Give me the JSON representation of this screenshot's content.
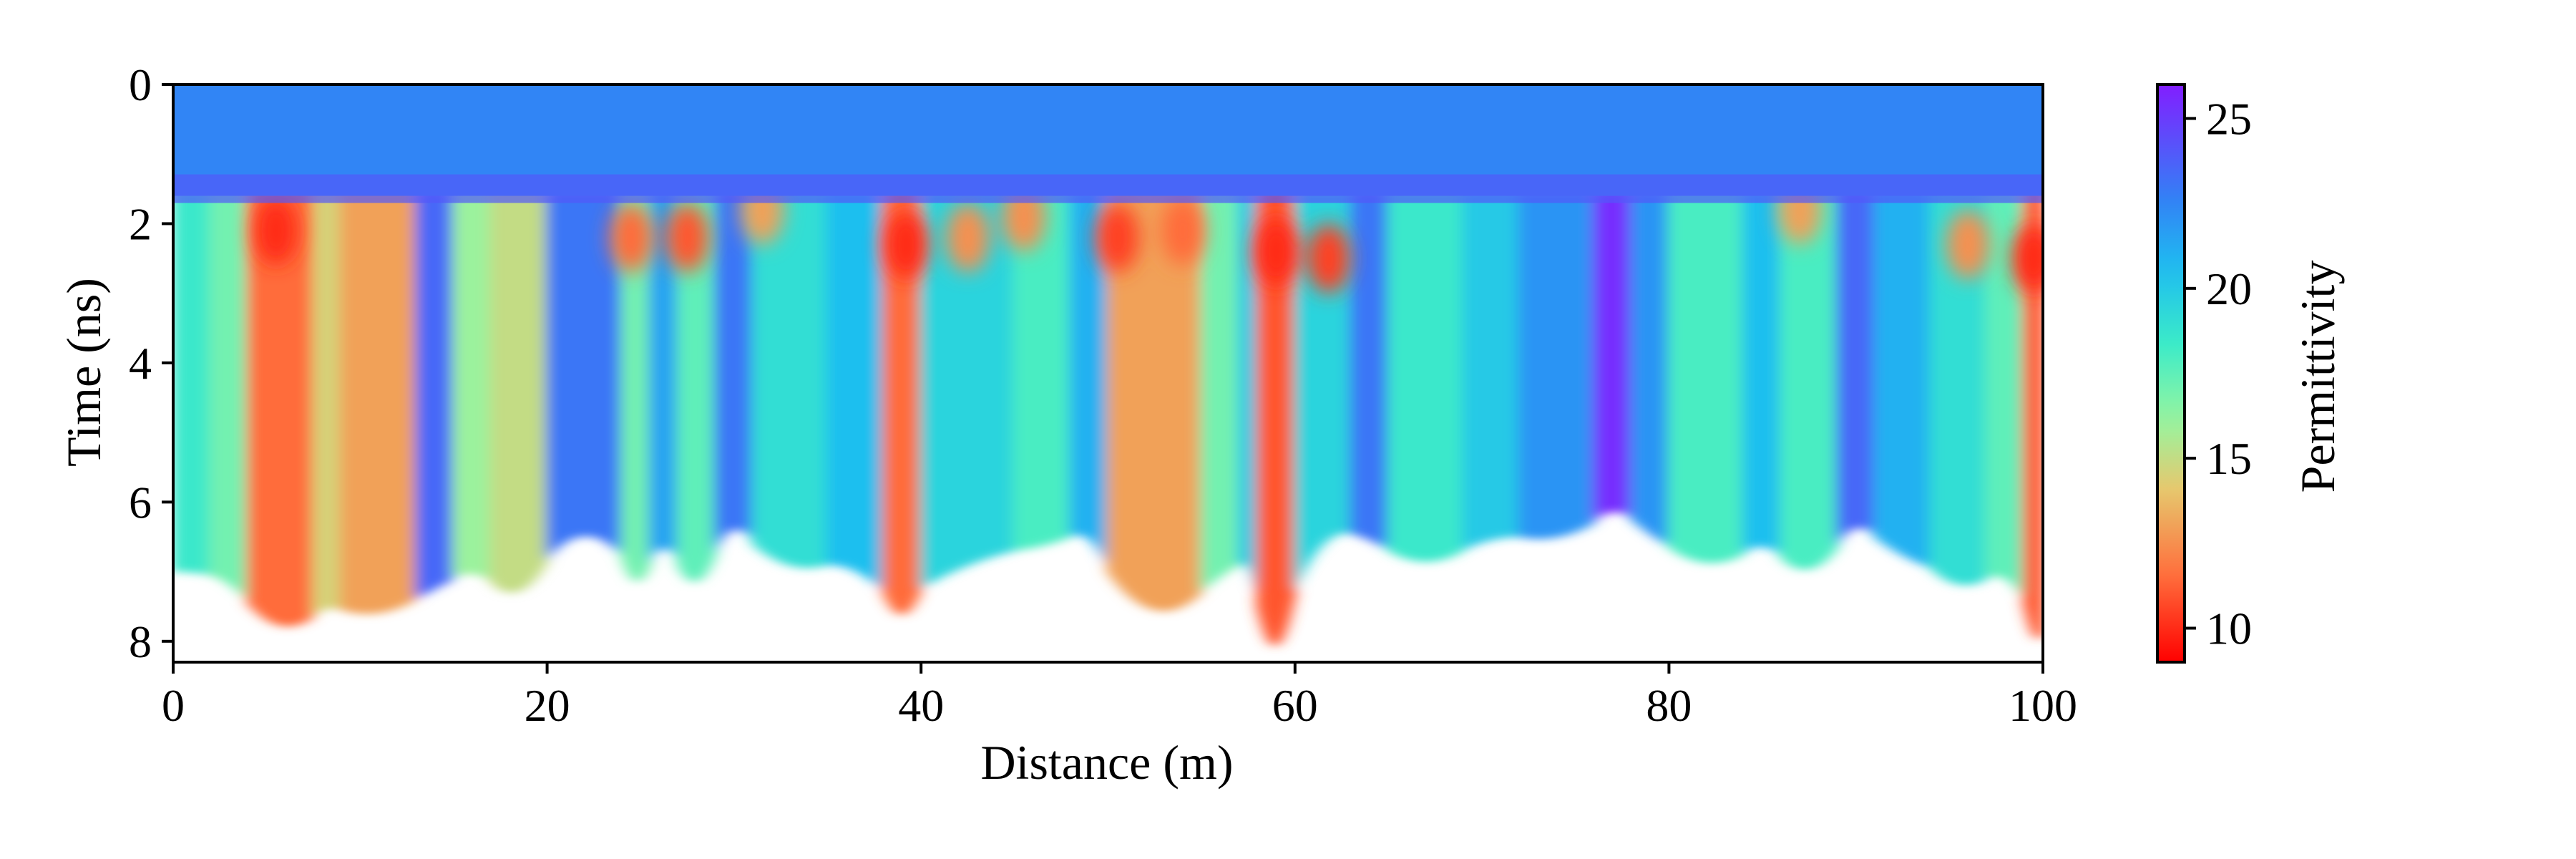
{
  "chart_data": {
    "type": "heatmap",
    "title": "",
    "xlabel": "Distance (m)",
    "ylabel": "Time (ns)",
    "xlim": [
      0,
      100
    ],
    "ylim": [
      0,
      8.3
    ],
    "y_inverted": true,
    "x_ticks": [
      0,
      20,
      40,
      60,
      80,
      100
    ],
    "x_tick_labels": [
      "0",
      "20",
      "40",
      "60",
      "80",
      "100"
    ],
    "y_ticks": [
      0,
      2,
      4,
      6,
      8
    ],
    "y_tick_labels": [
      "0",
      "2",
      "4",
      "6",
      "8"
    ],
    "colorbar": {
      "label": "Permittivity",
      "colormap": "rainbow-reversed",
      "range": [
        9,
        26
      ],
      "ticks": [
        10,
        15,
        20,
        25
      ],
      "tick_labels": [
        "10",
        "15",
        "20",
        "25"
      ]
    },
    "surface_layer": {
      "permittivity": 22.5,
      "bottom_time_ns": 1.6
    },
    "columns": [
      {
        "x": [
          0,
          2
        ],
        "permittivity": 18.5,
        "bottom_ns": 7.0
      },
      {
        "x": [
          2,
          4
        ],
        "permittivity": 17.0,
        "bottom_ns": 7.1
      },
      {
        "x": [
          4,
          7.5
        ],
        "permittivity": 11.5,
        "bottom_ns": 7.8
      },
      {
        "x": [
          7.5,
          9
        ],
        "permittivity": 14.5,
        "bottom_ns": 7.5
      },
      {
        "x": [
          9,
          13
        ],
        "permittivity": 13.0,
        "bottom_ns": 7.6
      },
      {
        "x": [
          13,
          15
        ],
        "permittivity": 23.5,
        "bottom_ns": 7.2
      },
      {
        "x": [
          15,
          17
        ],
        "permittivity": 16.0,
        "bottom_ns": 7.0
      },
      {
        "x": [
          17,
          20
        ],
        "permittivity": 15.0,
        "bottom_ns": 7.3
      },
      {
        "x": [
          20,
          24
        ],
        "permittivity": 23.0,
        "bottom_ns": 6.4
      },
      {
        "x": [
          24,
          25.5
        ],
        "permittivity": 17.0,
        "bottom_ns": 7.2
      },
      {
        "x": [
          25.5,
          27
        ],
        "permittivity": 21.5,
        "bottom_ns": 6.6
      },
      {
        "x": [
          27,
          29
        ],
        "permittivity": 17.5,
        "bottom_ns": 7.2
      },
      {
        "x": [
          29,
          31
        ],
        "permittivity": 23.0,
        "bottom_ns": 6.3
      },
      {
        "x": [
          31,
          35
        ],
        "permittivity": 19.0,
        "bottom_ns": 6.9
      },
      {
        "x": [
          35,
          38
        ],
        "permittivity": 20.5,
        "bottom_ns": 6.9
      },
      {
        "x": [
          38,
          40
        ],
        "permittivity": 11.5,
        "bottom_ns": 7.7
      },
      {
        "x": [
          40,
          45
        ],
        "permittivity": 19.5,
        "bottom_ns": 6.8
      },
      {
        "x": [
          45,
          48
        ],
        "permittivity": 18.0,
        "bottom_ns": 6.6
      },
      {
        "x": [
          48,
          50
        ],
        "permittivity": 21.0,
        "bottom_ns": 6.4
      },
      {
        "x": [
          50,
          55
        ],
        "permittivity": 13.0,
        "bottom_ns": 7.6
      },
      {
        "x": [
          55,
          57
        ],
        "permittivity": 17.0,
        "bottom_ns": 7.0
      },
      {
        "x": [
          57,
          58
        ],
        "permittivity": 20.0,
        "bottom_ns": 6.8
      },
      {
        "x": [
          58,
          60
        ],
        "permittivity": 11.0,
        "bottom_ns": 8.2
      },
      {
        "x": [
          60,
          63
        ],
        "permittivity": 19.5,
        "bottom_ns": 6.4
      },
      {
        "x": [
          63,
          65
        ],
        "permittivity": 23.0,
        "bottom_ns": 6.5
      },
      {
        "x": [
          65,
          69
        ],
        "permittivity": 18.5,
        "bottom_ns": 6.9
      },
      {
        "x": [
          69,
          72
        ],
        "permittivity": 20.0,
        "bottom_ns": 6.5
      },
      {
        "x": [
          72,
          76
        ],
        "permittivity": 22.0,
        "bottom_ns": 6.5
      },
      {
        "x": [
          76,
          78
        ],
        "permittivity": 25.5,
        "bottom_ns": 6.1
      },
      {
        "x": [
          78,
          80
        ],
        "permittivity": 22.0,
        "bottom_ns": 6.4
      },
      {
        "x": [
          80,
          84
        ],
        "permittivity": 18.0,
        "bottom_ns": 6.9
      },
      {
        "x": [
          84,
          86
        ],
        "permittivity": 20.5,
        "bottom_ns": 6.6
      },
      {
        "x": [
          86,
          89
        ],
        "permittivity": 18.0,
        "bottom_ns": 7.0
      },
      {
        "x": [
          89,
          91
        ],
        "permittivity": 23.5,
        "bottom_ns": 6.3
      },
      {
        "x": [
          91,
          94
        ],
        "permittivity": 21.0,
        "bottom_ns": 6.7
      },
      {
        "x": [
          94,
          97
        ],
        "permittivity": 19.0,
        "bottom_ns": 7.2
      },
      {
        "x": [
          97,
          99
        ],
        "permittivity": 17.5,
        "bottom_ns": 7.0
      },
      {
        "x": [
          99,
          100
        ],
        "permittivity": 11.0,
        "bottom_ns": 7.9
      }
    ],
    "anomalies": [
      {
        "x": 5.5,
        "t": 2.1,
        "permittivity": 10.0
      },
      {
        "x": 24.5,
        "t": 2.2,
        "permittivity": 11.5
      },
      {
        "x": 27.5,
        "t": 2.2,
        "permittivity": 11.0
      },
      {
        "x": 31.5,
        "t": 1.8,
        "permittivity": 13.0
      },
      {
        "x": 39.2,
        "t": 2.3,
        "permittivity": 10.0
      },
      {
        "x": 42.5,
        "t": 2.2,
        "permittivity": 12.5
      },
      {
        "x": 45.5,
        "t": 1.9,
        "permittivity": 12.5
      },
      {
        "x": 50.5,
        "t": 2.2,
        "permittivity": 10.5
      },
      {
        "x": 54.0,
        "t": 2.1,
        "permittivity": 11.5
      },
      {
        "x": 59.0,
        "t": 2.4,
        "permittivity": 10.0
      },
      {
        "x": 61.8,
        "t": 2.5,
        "permittivity": 10.5
      },
      {
        "x": 87.0,
        "t": 1.8,
        "permittivity": 13.0
      },
      {
        "x": 96.0,
        "t": 2.3,
        "permittivity": 12.5
      },
      {
        "x": 99.5,
        "t": 2.5,
        "permittivity": 10.0
      }
    ]
  }
}
